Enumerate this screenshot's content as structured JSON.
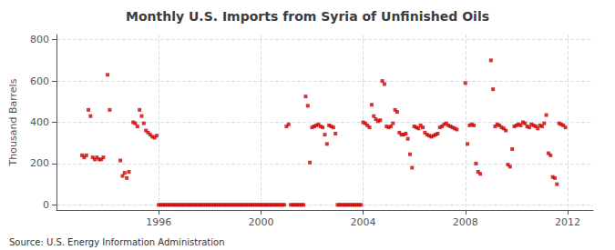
{
  "chart_data": {
    "type": "scatter",
    "title": "Monthly U.S. Imports from Syria of Unfinished Oils",
    "ylabel": "Thousand Barrels",
    "annotations": [
      "Source: U.S. Energy Information Administration"
    ],
    "color": "#cc0000",
    "marker": "square",
    "grid": true,
    "xlim": [
      1992.0,
      2013.0
    ],
    "ylim": [
      -25,
      825
    ],
    "xticks": [
      1996,
      2000,
      2004,
      2008,
      2012
    ],
    "yticks": [
      0,
      200,
      400,
      600,
      800
    ],
    "x": [
      1993,
      1993.0833333333,
      1993.1666666667,
      1993.25,
      1993.3333333333,
      1993.4166666667,
      1993.5,
      1993.5833333333,
      1993.6666666667,
      1993.75,
      1993.8333333333,
      1994,
      1994.0833333333,
      1994.5,
      1994.5833333333,
      1994.6666666667,
      1994.75,
      1994.8333333333,
      1995,
      1995.0833333333,
      1995.1666666667,
      1995.25,
      1995.3333333333,
      1995.4166666667,
      1995.5,
      1995.5833333333,
      1995.6666666667,
      1995.75,
      1995.8333333333,
      1995.9166666667,
      1996,
      1996.0833333333,
      1996.1666666667,
      1996.25,
      1996.3333333333,
      1996.4166666667,
      1996.5,
      1996.5833333333,
      1996.6666666667,
      1996.75,
      1996.8333333333,
      1996.9166666667,
      1997,
      1997.0833333333,
      1997.1666666667,
      1997.25,
      1997.3333333333,
      1997.4166666667,
      1997.5,
      1997.5833333333,
      1997.6666666667,
      1997.75,
      1997.8333333333,
      1997.9166666667,
      1998,
      1998.0833333333,
      1998.1666666667,
      1998.25,
      1998.3333333333,
      1998.4166666667,
      1998.5,
      1998.5833333333,
      1998.6666666667,
      1998.75,
      1998.8333333333,
      1998.9166666667,
      1999,
      1999.0833333333,
      1999.1666666667,
      1999.25,
      1999.3333333333,
      1999.4166666667,
      1999.5,
      1999.5833333333,
      1999.6666666667,
      1999.75,
      1999.8333333333,
      1999.9166666667,
      2000,
      2000.0833333333,
      2000.1666666667,
      2000.25,
      2000.3333333333,
      2000.4166666667,
      2000.5,
      2000.5833333333,
      2000.6666666667,
      2000.75,
      2000.8333333333,
      2000.9166666667,
      2001,
      2001.0833333333,
      2001.1666666667,
      2001.25,
      2001.3333333333,
      2001.4166666667,
      2001.5,
      2001.5833333333,
      2001.6666666667,
      2001.75,
      2001.8333333333,
      2001.9166666667,
      2002,
      2002.0833333333,
      2002.1666666667,
      2002.25,
      2002.3333333333,
      2002.4166666667,
      2002.5,
      2002.5833333333,
      2002.6666666667,
      2002.75,
      2002.8333333333,
      2002.9166666667,
      2003,
      2003.0833333333,
      2003.1666666667,
      2003.25,
      2003.3333333333,
      2003.4166666667,
      2003.5,
      2003.5833333333,
      2003.6666666667,
      2003.75,
      2003.8333333333,
      2003.9166666667,
      2004,
      2004.0833333333,
      2004.1666666667,
      2004.25,
      2004.3333333333,
      2004.4166666667,
      2004.5,
      2004.5833333333,
      2004.6666666667,
      2004.75,
      2004.8333333333,
      2004.9166666667,
      2005,
      2005.0833333333,
      2005.1666666667,
      2005.25,
      2005.3333333333,
      2005.4166666667,
      2005.5,
      2005.5833333333,
      2005.6666666667,
      2005.75,
      2005.8333333333,
      2005.9166666667,
      2006,
      2006.0833333333,
      2006.1666666667,
      2006.25,
      2006.3333333333,
      2006.4166666667,
      2006.5,
      2006.5833333333,
      2006.6666666667,
      2006.75,
      2006.8333333333,
      2006.9166666667,
      2007,
      2007.0833333333,
      2007.1666666667,
      2007.25,
      2007.3333333333,
      2007.4166666667,
      2007.5,
      2007.5833333333,
      2007.6666666667,
      2008,
      2008.0833333333,
      2008.1666666667,
      2008.25,
      2008.3333333333,
      2008.4166666667,
      2008.5,
      2008.5833333333,
      2009,
      2009.0833333333,
      2009.1666666667,
      2009.25,
      2009.3333333333,
      2009.4166666667,
      2009.5,
      2009.5833333333,
      2009.6666666667,
      2009.75,
      2009.8333333333,
      2009.9166666667,
      2010,
      2010.0833333333,
      2010.1666666667,
      2010.25,
      2010.3333333333,
      2010.4166666667,
      2010.5,
      2010.5833333333,
      2010.6666666667,
      2010.75,
      2010.8333333333,
      2010.9166666667,
      2011,
      2011.0833333333,
      2011.1666666667,
      2011.25,
      2011.3333333333,
      2011.4166666667,
      2011.5,
      2011.5833333333,
      2011.6666666667,
      2011.75,
      2011.8333333333,
      2011.9166666667
    ],
    "values": [
      240,
      230,
      240,
      460,
      430,
      230,
      220,
      230,
      220,
      220,
      230,
      630,
      460,
      215,
      140,
      155,
      130,
      160,
      400,
      395,
      380,
      460,
      430,
      395,
      360,
      350,
      340,
      330,
      325,
      335,
      0,
      0,
      0,
      0,
      0,
      0,
      0,
      0,
      0,
      0,
      0,
      0,
      0,
      0,
      0,
      0,
      0,
      0,
      0,
      0,
      0,
      0,
      0,
      0,
      0,
      0,
      0,
      0,
      0,
      0,
      0,
      0,
      0,
      0,
      0,
      0,
      0,
      0,
      0,
      0,
      0,
      0,
      0,
      0,
      0,
      0,
      0,
      0,
      0,
      0,
      0,
      0,
      0,
      0,
      0,
      0,
      0,
      0,
      0,
      0,
      380,
      390,
      0,
      0,
      0,
      0,
      0,
      0,
      0,
      525,
      480,
      205,
      375,
      380,
      385,
      390,
      380,
      375,
      340,
      295,
      385,
      380,
      375,
      345,
      0,
      0,
      0,
      0,
      0,
      0,
      0,
      0,
      0,
      0,
      0,
      0,
      400,
      395,
      385,
      375,
      485,
      430,
      415,
      405,
      410,
      600,
      585,
      380,
      375,
      380,
      395,
      460,
      450,
      350,
      340,
      340,
      345,
      320,
      245,
      180,
      380,
      375,
      370,
      385,
      375,
      350,
      340,
      335,
      330,
      335,
      340,
      345,
      375,
      380,
      390,
      395,
      385,
      380,
      375,
      370,
      365,
      590,
      295,
      385,
      390,
      385,
      200,
      160,
      150,
      700,
      560,
      380,
      390,
      385,
      375,
      370,
      360,
      195,
      185,
      270,
      380,
      385,
      390,
      385,
      400,
      395,
      380,
      375,
      390,
      385,
      380,
      370,
      385,
      380,
      395,
      435,
      250,
      240,
      135,
      130,
      100,
      395,
      390,
      385,
      375
    ]
  }
}
